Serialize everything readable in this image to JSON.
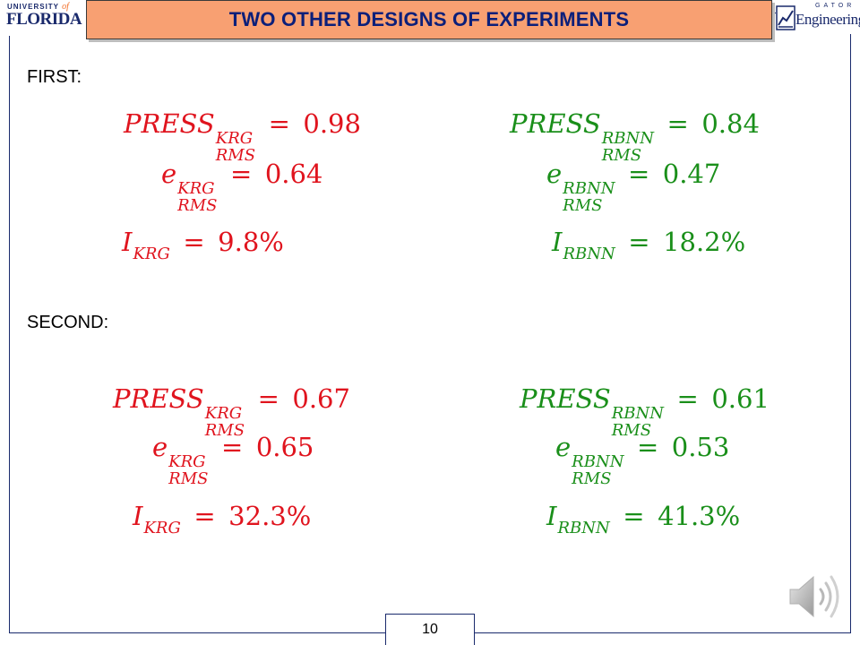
{
  "title": "TWO OTHER DESIGNS OF EXPERIMENTS",
  "logos": {
    "left": {
      "line1": "UNIVERSITY",
      "line1_of": "of",
      "line2": "FLORIDA"
    },
    "right": {
      "gator": "GATOR",
      "engineering": "Engineering"
    }
  },
  "colors": {
    "banner": "#f8a072",
    "krg": "#e0141e",
    "rbnn": "#1a8f1a",
    "frame": "#1a2a6c"
  },
  "sections": [
    {
      "label": "FIRST:",
      "krg": {
        "press": {
          "base": "PRESS",
          "sup": "KRG",
          "sub": "RMS",
          "value": "0.98"
        },
        "e": {
          "base": "e",
          "sup": "KRG",
          "sub": "RMS",
          "value": "0.64"
        },
        "i": {
          "base": "I",
          "sub": "KRG",
          "value": "9.8%"
        }
      },
      "rbnn": {
        "press": {
          "base": "PRESS",
          "sup": "RBNN",
          "sub": "RMS",
          "value": "0.84"
        },
        "e": {
          "base": "e",
          "sup": "RBNN",
          "sub": "RMS",
          "value": "0.47"
        },
        "i": {
          "base": "I",
          "sub": "RBNN",
          "value": "18.2%"
        }
      }
    },
    {
      "label": "SECOND:",
      "krg": {
        "press": {
          "base": "PRESS",
          "sup": "KRG",
          "sub": "RMS",
          "value": "0.67"
        },
        "e": {
          "base": "e",
          "sup": "KRG",
          "sub": "RMS",
          "value": "0.65"
        },
        "i": {
          "base": "I",
          "sub": "KRG",
          "value": "32.3%"
        }
      },
      "rbnn": {
        "press": {
          "base": "PRESS",
          "sup": "RBNN",
          "sub": "RMS",
          "value": "0.61"
        },
        "e": {
          "base": "e",
          "sup": "RBNN",
          "sub": "RMS",
          "value": "0.53"
        },
        "i": {
          "base": "I",
          "sub": "RBNN",
          "value": "41.3%"
        }
      }
    }
  ],
  "page_number": "10",
  "audio_icon": "speaker-icon"
}
